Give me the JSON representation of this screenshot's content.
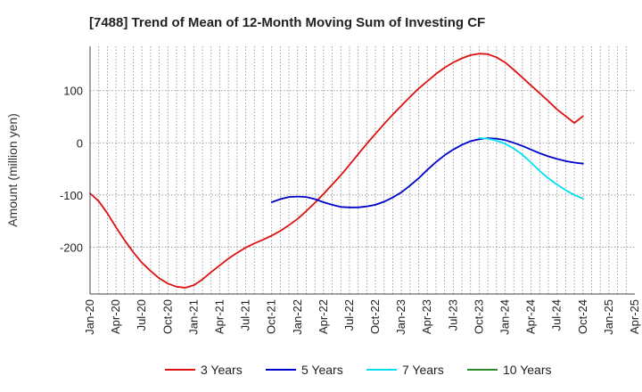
{
  "chart_data": {
    "type": "line",
    "title": "[7488]  Trend of Mean of 12-Month Moving Sum of Investing CF",
    "xlabel": "",
    "ylabel": "Amount (million yen)",
    "ylim": [
      -290,
      185
    ],
    "yticks": [
      100,
      0,
      -100,
      -200
    ],
    "ytick_labels": [
      "100",
      "0",
      "-100",
      "-200"
    ],
    "x_range_months": [
      0,
      63
    ],
    "xticks": [
      0,
      3,
      6,
      9,
      12,
      15,
      18,
      21,
      24,
      27,
      30,
      33,
      36,
      39,
      42,
      45,
      48,
      51,
      54,
      57,
      60,
      63
    ],
    "xtick_labels": [
      "Jan-20",
      "Apr-20",
      "Jul-20",
      "Oct-20",
      "Jan-21",
      "Apr-21",
      "Jul-21",
      "Oct-21",
      "Jan-22",
      "Apr-22",
      "Jul-22",
      "Oct-22",
      "Jan-23",
      "Apr-23",
      "Jul-23",
      "Oct-23",
      "Jan-24",
      "Apr-24",
      "Jul-24",
      "Oct-24",
      "Jan-25",
      "Apr-25"
    ],
    "grid": true,
    "legend_position": "bottom",
    "series": [
      {
        "name": "3 Years",
        "color": "#dd1111",
        "x": [
          0,
          1,
          2,
          3,
          4,
          5,
          6,
          7,
          8,
          9,
          10,
          11,
          12,
          13,
          14,
          15,
          16,
          17,
          18,
          19,
          20,
          21,
          22,
          23,
          24,
          25,
          26,
          27,
          28,
          29,
          30,
          31,
          32,
          33,
          34,
          35,
          36,
          37,
          38,
          39,
          40,
          41,
          42,
          43,
          44,
          45,
          46,
          47,
          48,
          49,
          50,
          51,
          52,
          53,
          54,
          55,
          56,
          57
        ],
        "values": [
          -97,
          -112,
          -135,
          -162,
          -187,
          -210,
          -230,
          -246,
          -260,
          -270,
          -276,
          -278,
          -273,
          -262,
          -248,
          -235,
          -222,
          -211,
          -201,
          -193,
          -186,
          -178,
          -169,
          -158,
          -146,
          -131,
          -115,
          -98,
          -80,
          -62,
          -42,
          -22,
          -2,
          17,
          36,
          54,
          71,
          88,
          104,
          118,
          132,
          144,
          154,
          162,
          168,
          171,
          170,
          164,
          154,
          140,
          125,
          110,
          95,
          80,
          64,
          51,
          38,
          51
        ]
      },
      {
        "name": "5 Years",
        "color": "#0000cc",
        "x": [
          21,
          22,
          23,
          24,
          25,
          26,
          27,
          28,
          29,
          30,
          31,
          32,
          33,
          34,
          35,
          36,
          37,
          38,
          39,
          40,
          41,
          42,
          43,
          44,
          45,
          46,
          47,
          48,
          49,
          50,
          51,
          52,
          53,
          54,
          55,
          56,
          57
        ],
        "values": [
          -114,
          -108,
          -104,
          -103,
          -104,
          -108,
          -114,
          -119,
          -123,
          -124,
          -124,
          -122,
          -119,
          -113,
          -105,
          -95,
          -82,
          -68,
          -52,
          -37,
          -24,
          -13,
          -4,
          3,
          7,
          9,
          8,
          5,
          0,
          -6,
          -13,
          -20,
          -26,
          -31,
          -35,
          -38,
          -40
        ]
      },
      {
        "name": "7 Years",
        "color": "#00e0f0",
        "x": [
          45,
          46,
          47,
          48,
          49,
          50,
          51,
          52,
          53,
          54,
          55,
          56,
          57
        ],
        "values": [
          9,
          8,
          4,
          -2,
          -11,
          -23,
          -38,
          -54,
          -68,
          -80,
          -91,
          -100,
          -107
        ]
      },
      {
        "name": "10 Years",
        "color": "#2a8a2a",
        "x": [],
        "values": []
      }
    ]
  }
}
